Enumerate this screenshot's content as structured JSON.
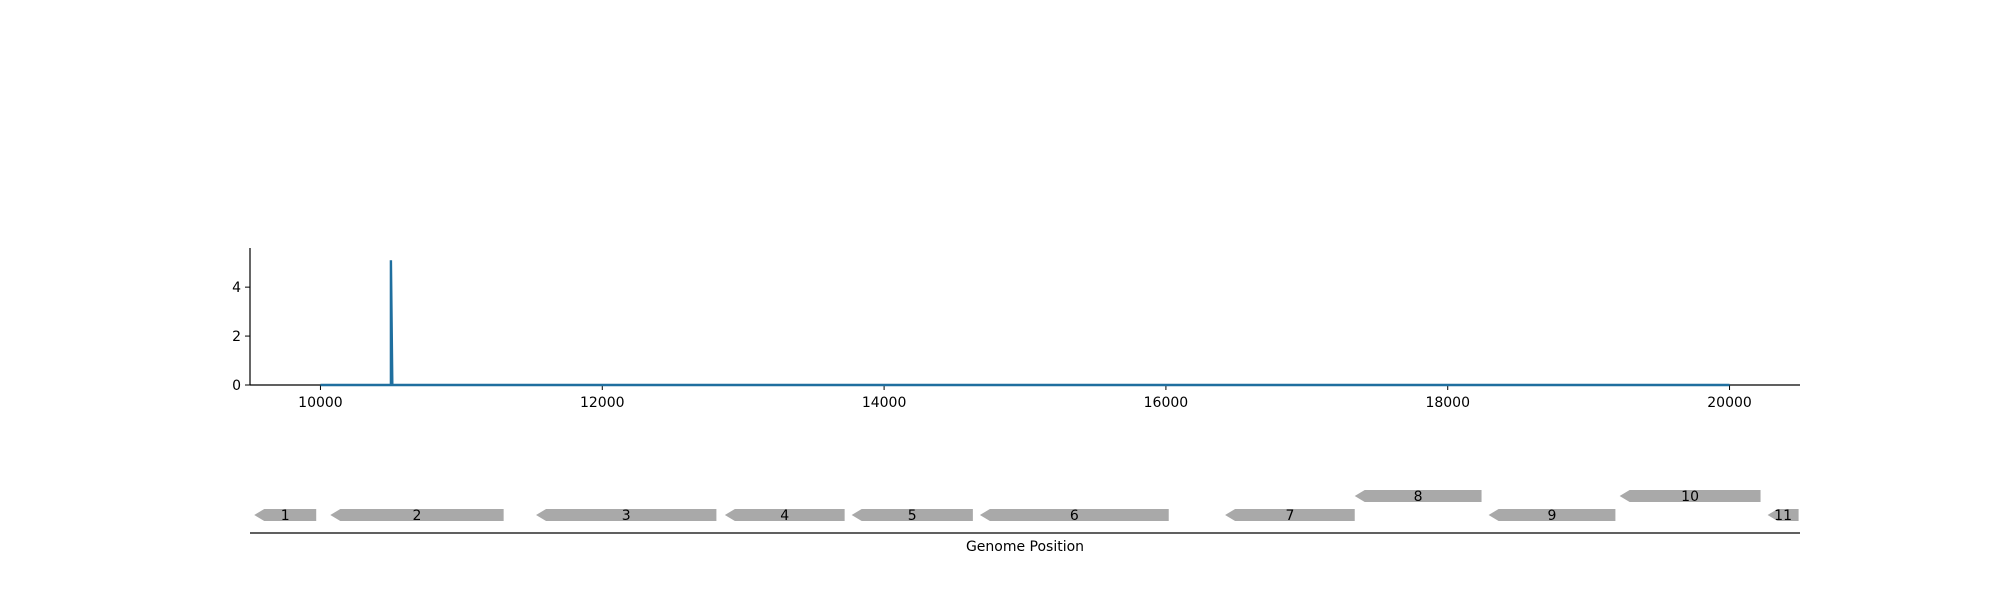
{
  "chart_data": [
    {
      "type": "line",
      "title": "",
      "xlabel": "",
      "ylabel": "",
      "xlim": [
        9500,
        20500
      ],
      "ylim": [
        0,
        5.6
      ],
      "x_ticks": [
        10000,
        12000,
        14000,
        16000,
        18000,
        20000
      ],
      "y_ticks": [
        0,
        2,
        4
      ],
      "grid": false,
      "series": [
        {
          "color": "#1f6f9f",
          "x": [
            10000,
            10490,
            10500,
            10500,
            10510,
            20000
          ],
          "y": [
            0,
            0,
            0,
            5.1,
            0,
            0
          ]
        }
      ]
    },
    {
      "type": "gene-track",
      "xlabel": "Genome Position",
      "xlim": [
        9500,
        20500
      ],
      "gene_color": "#a9a9a9",
      "genes": [
        {
          "label": "1",
          "start": 9530,
          "end": 9970,
          "strand": "-",
          "row": 0
        },
        {
          "label": "2",
          "start": 10070,
          "end": 11300,
          "strand": "-",
          "row": 0
        },
        {
          "label": "3",
          "start": 11530,
          "end": 12810,
          "strand": "-",
          "row": 0
        },
        {
          "label": "4",
          "start": 12870,
          "end": 13720,
          "strand": "-",
          "row": 0
        },
        {
          "label": "5",
          "start": 13770,
          "end": 14630,
          "strand": "-",
          "row": 0
        },
        {
          "label": "6",
          "start": 14680,
          "end": 16020,
          "strand": "-",
          "row": 0
        },
        {
          "label": "7",
          "start": 16420,
          "end": 17340,
          "strand": "-",
          "row": 0
        },
        {
          "label": "8",
          "start": 17340,
          "end": 18240,
          "strand": "-",
          "row": 1
        },
        {
          "label": "9",
          "start": 18290,
          "end": 19190,
          "strand": "-",
          "row": 0
        },
        {
          "label": "10",
          "start": 19220,
          "end": 20220,
          "strand": "-",
          "row": 1
        },
        {
          "label": "11",
          "start": 20270,
          "end": 20490,
          "strand": "-",
          "row": 0
        }
      ]
    }
  ]
}
